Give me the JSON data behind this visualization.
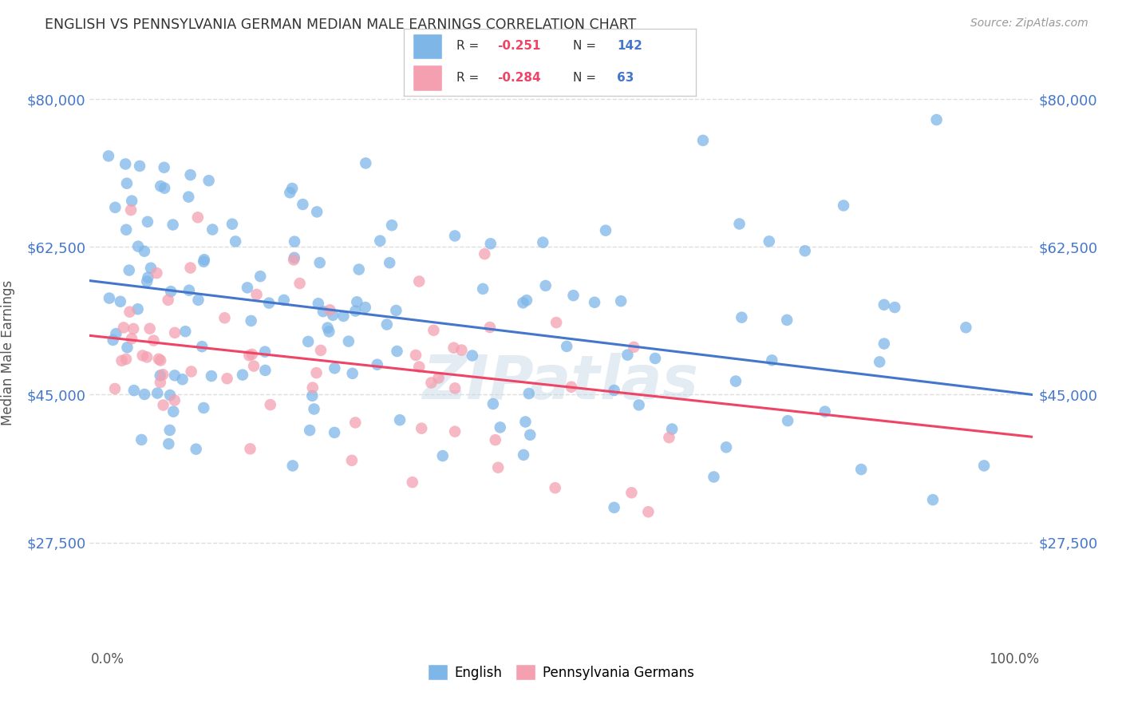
{
  "title": "ENGLISH VS PENNSYLVANIA GERMAN MEDIAN MALE EARNINGS CORRELATION CHART",
  "source": "Source: ZipAtlas.com",
  "ylabel": "Median Male Earnings",
  "ytick_labels": [
    "$27,500",
    "$45,000",
    "$62,500",
    "$80,000"
  ],
  "ytick_values": [
    27500,
    45000,
    62500,
    80000
  ],
  "ymin": 15000,
  "ymax": 85000,
  "xmin": -0.02,
  "xmax": 1.02,
  "english_R": "-0.251",
  "english_N": 142,
  "pg_R": "-0.284",
  "pg_N": 63,
  "english_color": "#7EB6E8",
  "pg_color": "#F4A0B0",
  "english_line_color": "#4477CC",
  "pg_line_color": "#EE4466",
  "watermark": "ZIPatlas",
  "background_color": "#FFFFFF",
  "grid_color": "#DDDDDD",
  "legend_label_english": "English",
  "legend_label_pg": "Pennsylvania Germans"
}
